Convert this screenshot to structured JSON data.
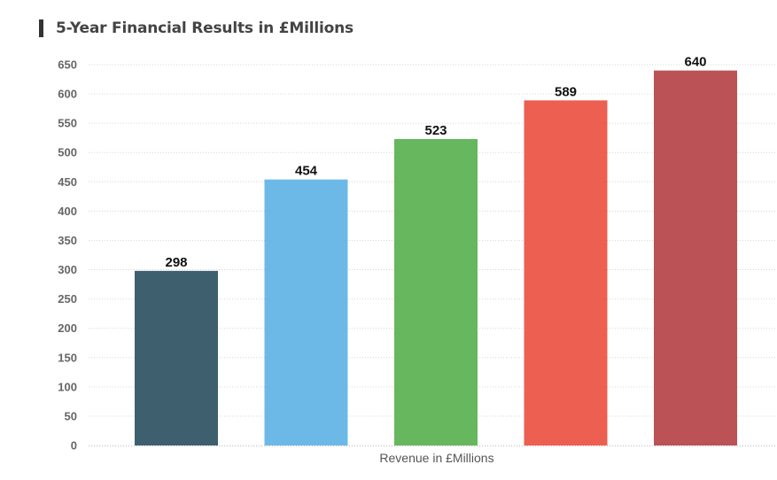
{
  "chart_data": {
    "type": "bar",
    "title": "5-Year Financial Results in £Millions",
    "xlabel": "Revenue in £Millions",
    "ylabel": "",
    "ylim": [
      0,
      650
    ],
    "yticks": [
      0,
      50,
      100,
      150,
      200,
      250,
      300,
      350,
      400,
      450,
      500,
      550,
      600,
      650
    ],
    "grid": true,
    "legend": "none",
    "values": [
      298,
      454,
      523,
      589,
      640
    ],
    "colors": [
      "#2e5262",
      "#5fb3e6",
      "#59b14f",
      "#ec5142",
      "#b54346"
    ],
    "data_labels": true
  }
}
